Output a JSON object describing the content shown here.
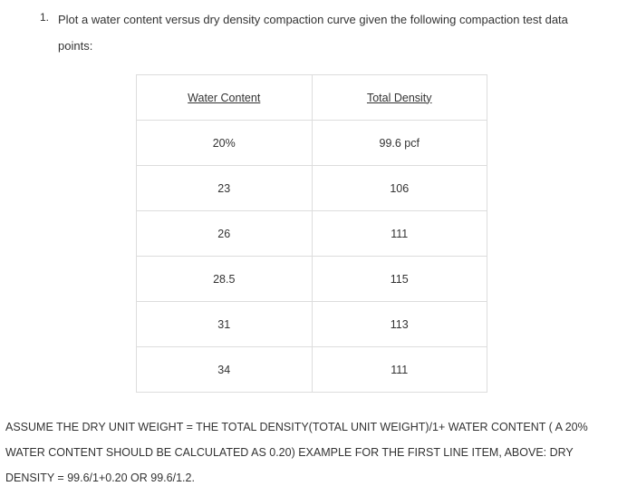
{
  "question": {
    "number": "1.",
    "lines": [
      "Plot a water content versus dry density compaction curve given the following compaction test data",
      "points:"
    ]
  },
  "table": {
    "header": [
      "Water Content",
      "Total Density"
    ],
    "rows": [
      [
        "20%",
        "99.6 pcf"
      ],
      [
        "23",
        "106"
      ],
      [
        "26",
        "111"
      ],
      [
        "28.5",
        "115"
      ],
      [
        "31",
        "113"
      ],
      [
        "34",
        "111"
      ]
    ]
  },
  "note": {
    "lines": [
      "ASSUME THE DRY UNIT WEIGHT = THE TOTAL DENSITY(TOTAL UNIT WEIGHT)/1+ WATER CONTENT ( A 20%",
      "WATER CONTENT SHOULD BE CALCULATED AS 0.20) EXAMPLE FOR THE FIRST LINE ITEM, ABOVE: DRY",
      "DENSITY = 99.6/1+0.20 OR 99.6/1.2."
    ]
  }
}
